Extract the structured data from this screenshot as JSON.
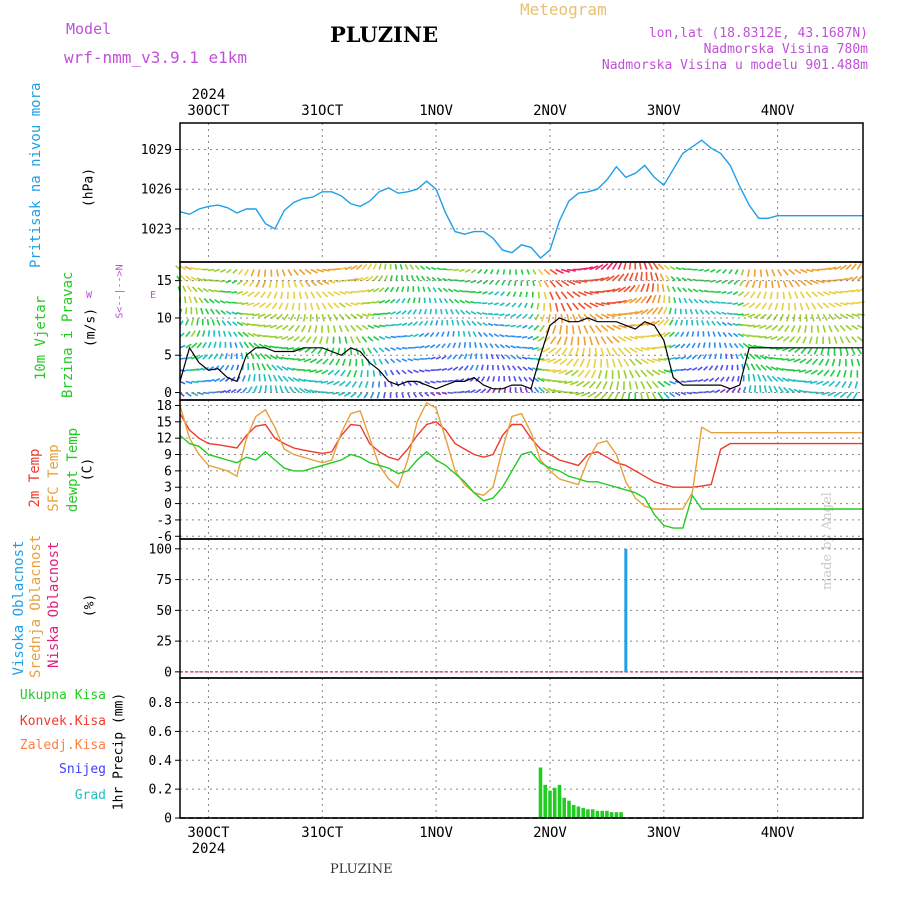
{
  "header": {
    "model_label": "Model",
    "model_name": "wrf-nmm_v3.9.1 e1km",
    "title": "PLUZINE",
    "meteogram": "Meteogram",
    "lonlat": "lon,lat (18.8312E, 43.1687N)",
    "altitude": "Nadmorska Visina 780m",
    "model_altitude": "Nadmorska Visina u modelu 901.488m",
    "watermark": "made by Angel",
    "footer": "PLUZINE"
  },
  "axis": {
    "year": "2024",
    "days": [
      "30OCT",
      "31OCT",
      "1NOV",
      "2NOV",
      "3NOV",
      "4NOV"
    ],
    "x_start_hours": -6,
    "x_end_hours": 138
  },
  "colors": {
    "pressure": "#1f9fe8",
    "temp2m": "#ef3b2c",
    "sfc": "#e8a03c",
    "dew": "#22cc22",
    "high_cloud": "#1f9fe8",
    "mid_cloud": "#e8c040",
    "low_cloud": "#e0207a",
    "precip_total": "#22cc22",
    "precip_conv": "#ef3b2c",
    "precip_frz": "#ff8040",
    "snow": "#4040ff",
    "grad": "#20c0c0",
    "wind_label_speed": "#22cc22",
    "wind_label_dir": "#22cc22",
    "axis_black": "#000000"
  },
  "panel_labels": {
    "pressure": {
      "name": "Pritisak na nivou mora",
      "unit": "(hPa)"
    },
    "wind": {
      "name1": "10m Vjetar",
      "name2": "Brzina i Pravac",
      "unit": "(m/s)",
      "compass_s": "S<--|-->N",
      "compass_w": "W",
      "compass_e": "E"
    },
    "temp": {
      "t2m": "2m Temp",
      "sfc": "SFC Temp",
      "dew": "dewpt Temp",
      "unit": "(C)"
    },
    "cloud": {
      "high": "Visoka Oblacnost",
      "mid": "Srednja Oblacnost",
      "low": "Niska Oblacnost",
      "unit": "(%)"
    },
    "precip": {
      "total": "Ukupna Kisa",
      "conv": "Konvek.Kisa",
      "frz": "Zaledj.Kisa",
      "snow": "Snijeg",
      "grad": "Grad",
      "unit": "1hr Precip (mm)"
    }
  },
  "chart_data": [
    {
      "type": "line",
      "name": "pressure",
      "ylabel": "(hPa)",
      "ylim": [
        1020.5,
        1031
      ],
      "yticks": [
        1023,
        1026,
        1029
      ],
      "series": [
        {
          "x": [
            -6,
            -4,
            -2,
            0,
            2,
            4,
            6,
            8,
            10,
            12,
            14,
            16,
            18,
            20,
            22,
            24,
            26,
            28,
            30,
            32,
            34,
            36,
            38,
            40,
            42,
            44,
            46,
            48,
            50,
            52,
            54,
            56,
            58,
            60,
            62,
            64,
            66,
            68,
            70,
            72,
            74,
            76,
            78,
            80,
            82,
            84,
            86,
            88,
            90,
            92,
            94,
            96,
            98,
            100,
            102,
            104,
            106,
            108,
            110,
            112,
            114,
            116,
            118,
            120,
            122,
            124,
            126,
            128,
            130,
            132,
            134,
            136,
            138
          ],
          "y": [
            1024.3,
            1024.1,
            1024.5,
            1024.7,
            1024.8,
            1024.6,
            1024.2,
            1024.5,
            1024.5,
            1023.4,
            1023.0,
            1024.4,
            1025.0,
            1025.3,
            1025.4,
            1025.8,
            1025.8,
            1025.5,
            1024.9,
            1024.7,
            1025.1,
            1025.8,
            1026.1,
            1025.7,
            1025.8,
            1026.0,
            1026.6,
            1026.0,
            1024.2,
            1022.8,
            1022.6,
            1022.8,
            1022.8,
            1022.3,
            1021.4,
            1021.2,
            1021.8,
            1021.6,
            1020.8,
            1021.4,
            1023.6,
            1025.1,
            1025.7,
            1025.8,
            1026.0,
            1026.7,
            1027.7,
            1026.9,
            1027.2,
            1027.8,
            1026.9,
            1026.3,
            1027.5,
            1028.7,
            1029.2,
            1029.7,
            1029.1,
            1028.7,
            1027.8,
            1026.2,
            1024.8,
            1023.8,
            1023.8,
            1024.0,
            1024.0,
            1024.0,
            1024.0,
            1024.0,
            1024.0,
            1024.0,
            1024.0,
            1024.0,
            1024.0
          ]
        }
      ]
    },
    {
      "type": "line",
      "name": "wind",
      "ylabel": "(m/s)",
      "ylim": [
        -1,
        17.5
      ],
      "yticks": [
        0,
        5,
        10,
        15
      ],
      "series": [
        {
          "name": "speed",
          "x": [
            -6,
            -4,
            -2,
            0,
            2,
            4,
            6,
            8,
            10,
            12,
            14,
            16,
            18,
            20,
            22,
            24,
            26,
            28,
            30,
            32,
            34,
            36,
            38,
            40,
            42,
            44,
            46,
            48,
            50,
            52,
            54,
            56,
            58,
            60,
            62,
            64,
            66,
            68,
            70,
            72,
            74,
            76,
            78,
            80,
            82,
            84,
            86,
            88,
            90,
            92,
            94,
            96,
            98,
            100,
            102,
            104,
            106,
            108,
            110,
            112,
            114,
            116,
            118,
            120,
            122,
            124,
            126,
            128,
            130,
            132,
            134,
            136,
            138
          ],
          "y": [
            1.5,
            6,
            4,
            3,
            3.2,
            2,
            1.5,
            5,
            6,
            6,
            5.5,
            5.5,
            5.5,
            6,
            6,
            6,
            5.5,
            5,
            6,
            5.5,
            4,
            3,
            1.5,
            1,
            1.5,
            1.5,
            1,
            0.5,
            1,
            1.5,
            1.5,
            2,
            1,
            0.5,
            0.5,
            1,
            1,
            0.5,
            5,
            9,
            10,
            9.5,
            9.5,
            10,
            9.5,
            9.5,
            9.5,
            9,
            8.5,
            9.5,
            9,
            7,
            2,
            1,
            1,
            1,
            1,
            1,
            0.5,
            1,
            6,
            6,
            6,
            6,
            6,
            6,
            6,
            6,
            6,
            6,
            6,
            6,
            6
          ]
        }
      ]
    },
    {
      "type": "line",
      "name": "temperature",
      "ylabel": "(C)",
      "ylim": [
        -6.5,
        19
      ],
      "yticks": [
        -6,
        -3,
        0,
        3,
        6,
        9,
        12,
        15,
        18
      ],
      "x": [
        -6,
        -4,
        -2,
        0,
        2,
        4,
        6,
        8,
        10,
        12,
        14,
        16,
        18,
        20,
        22,
        24,
        26,
        28,
        30,
        32,
        34,
        36,
        38,
        40,
        42,
        44,
        46,
        48,
        50,
        52,
        54,
        56,
        58,
        60,
        62,
        64,
        66,
        68,
        70,
        72,
        74,
        76,
        78,
        80,
        82,
        84,
        86,
        88,
        90,
        92,
        94,
        96,
        98,
        100,
        102,
        104,
        106,
        108,
        110,
        112,
        114,
        116,
        118,
        120,
        122,
        124,
        126,
        128,
        130,
        132,
        134,
        136,
        138
      ],
      "series": [
        {
          "name": "2m Temp",
          "y": [
            16.5,
            13.5,
            12,
            11,
            10.8,
            10.5,
            10.2,
            12.5,
            14.2,
            14.5,
            12,
            11,
            10.2,
            9.8,
            9.5,
            9.2,
            9.5,
            12.5,
            14.5,
            14.3,
            11,
            9.5,
            8.5,
            8,
            10,
            12.5,
            14.5,
            15,
            13.5,
            11,
            10,
            9,
            8.5,
            9,
            12.5,
            14.5,
            14.5,
            12,
            10,
            9,
            8,
            7.5,
            7,
            9,
            9.5,
            8.5,
            7.5,
            7,
            6,
            5,
            4,
            3.5,
            3,
            3,
            3,
            3.2,
            3.5,
            10,
            11,
            11,
            11,
            11,
            11,
            11,
            11,
            11,
            11,
            11,
            11,
            11,
            11,
            11,
            11
          ]
        },
        {
          "name": "SFC Temp",
          "y": [
            18,
            12,
            9,
            7,
            6.5,
            6,
            5,
            12,
            16,
            17.2,
            14,
            10,
            9,
            8.5,
            8,
            7.5,
            8,
            13,
            16.5,
            17,
            12,
            7,
            4.5,
            3,
            8,
            15,
            18.5,
            17.5,
            12,
            6,
            3.5,
            2,
            1.5,
            3,
            10,
            16,
            16.5,
            13,
            8,
            6,
            4.5,
            4,
            3.5,
            8,
            11,
            11.5,
            9,
            4,
            1,
            -0.5,
            -1,
            -1,
            -1,
            -1,
            2,
            14,
            13,
            13,
            13,
            13,
            13,
            13,
            13,
            13,
            13,
            13,
            13,
            13,
            13,
            13,
            13,
            13,
            13
          ]
        },
        {
          "name": "dewpt Temp",
          "y": [
            12.5,
            11,
            10.5,
            9,
            8.5,
            8,
            7.5,
            8.5,
            8,
            9.5,
            8,
            6.5,
            6,
            6,
            6.5,
            7,
            7.5,
            8,
            9,
            8.5,
            7.5,
            7,
            6.5,
            5.5,
            6,
            8,
            9.5,
            8,
            7,
            5.5,
            4,
            2,
            0.5,
            1,
            3,
            6,
            9,
            9.5,
            7.5,
            6.5,
            6,
            5,
            4.5,
            4,
            4,
            3.5,
            3,
            2.5,
            2,
            1,
            -2,
            -4,
            -4.5,
            -4.5,
            1.5,
            -1,
            -1,
            -1,
            -1,
            -1,
            -1,
            -1,
            -1,
            -1,
            -1,
            -1,
            -1,
            -1,
            -1,
            -1,
            -1,
            -1,
            -1
          ]
        }
      ]
    },
    {
      "type": "bar",
      "name": "cloud cover",
      "ylabel": "(%)",
      "ylim": [
        -5,
        108
      ],
      "yticks": [
        0,
        25,
        50,
        75,
        100
      ],
      "series": [
        {
          "name": "Visoka Oblacnost",
          "x": [
            88
          ],
          "y": [
            100
          ]
        },
        {
          "name": "Srednja Oblacnost",
          "x": [],
          "y": []
        },
        {
          "name": "Niska Oblacnost",
          "x": [],
          "y": []
        }
      ]
    },
    {
      "type": "bar",
      "name": "precipitation",
      "ylabel": "1hr Precip (mm)",
      "ylim": [
        0,
        0.97
      ],
      "yticks": [
        0,
        0.2,
        0.4,
        0.6,
        0.8
      ],
      "series": [
        {
          "name": "Ukupna Kisa",
          "x": [
            70,
            71,
            72,
            73,
            74,
            75,
            76,
            77,
            78,
            79,
            80,
            81,
            82,
            83,
            84,
            85,
            86,
            87
          ],
          "y": [
            0.35,
            0.23,
            0.19,
            0.21,
            0.23,
            0.14,
            0.12,
            0.09,
            0.08,
            0.07,
            0.06,
            0.06,
            0.05,
            0.05,
            0.05,
            0.04,
            0.04,
            0.04
          ]
        }
      ]
    }
  ]
}
